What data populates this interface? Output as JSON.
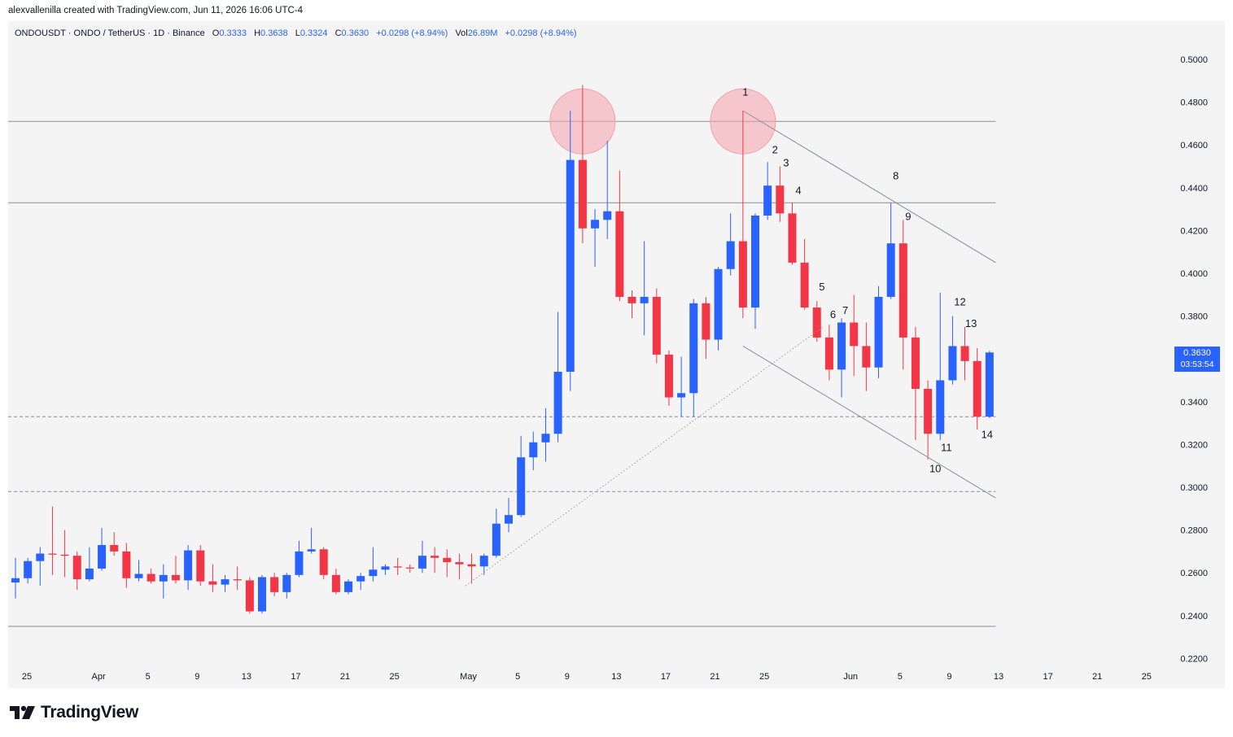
{
  "header": {
    "credit": "alexvallenilla created with TradingView.com, Jun 11, 2026 16:06 UTC-4"
  },
  "legend": {
    "symbol": "ONDOUSDT · ONDO / TetherUS · 1D · Binance",
    "open_label": "O",
    "open": "0.3333",
    "high_label": "H",
    "high": "0.3638",
    "low_label": "L",
    "low": "0.3324",
    "close_label": "C",
    "close": "0.3630",
    "change": "+0.0298 (+8.94%)",
    "vol_label": "Vol",
    "vol": "26.89M",
    "vol_change": "+0.0298 (+8.94%)"
  },
  "price_tag": {
    "price": "0.3630",
    "countdown": "03:53:54"
  },
  "brand": {
    "name": "TradingView"
  },
  "colors": {
    "up": "#2962ff",
    "down": "#f23645",
    "background": "#f4f4f4",
    "circle": "#f5a3ab"
  },
  "chart_data": {
    "type": "candlestick",
    "title": "ONDOUSDT · ONDO / TetherUS · 1D · Binance",
    "ylim": [
      0.21,
      0.51
    ],
    "y_ticks": [
      "0.5000",
      "0.4800",
      "0.4600",
      "0.4400",
      "0.4200",
      "0.4000",
      "0.3800",
      "0.3600",
      "0.3400",
      "0.3200",
      "0.3000",
      "0.2800",
      "0.2600",
      "0.2400",
      "0.2200"
    ],
    "x_ticks": [
      {
        "label": "25",
        "day": 0
      },
      {
        "label": "Apr",
        "day": 7
      },
      {
        "label": "5",
        "day": 11
      },
      {
        "label": "9",
        "day": 15
      },
      {
        "label": "13",
        "day": 19
      },
      {
        "label": "17",
        "day": 23
      },
      {
        "label": "21",
        "day": 27
      },
      {
        "label": "25",
        "day": 31
      },
      {
        "label": "May",
        "day": 37
      },
      {
        "label": "5",
        "day": 41
      },
      {
        "label": "9",
        "day": 45
      },
      {
        "label": "13",
        "day": 49
      },
      {
        "label": "17",
        "day": 53
      },
      {
        "label": "21",
        "day": 57
      },
      {
        "label": "25",
        "day": 61
      },
      {
        "label": "Jun",
        "day": 68
      },
      {
        "label": "5",
        "day": 72
      },
      {
        "label": "9",
        "day": 76
      },
      {
        "label": "13",
        "day": 80
      },
      {
        "label": "17",
        "day": 84
      },
      {
        "label": "21",
        "day": 88
      },
      {
        "label": "25",
        "day": 92
      }
    ],
    "candles": [
      {
        "o": 0.2555,
        "h": 0.267,
        "l": 0.248,
        "c": 0.2575
      },
      {
        "o": 0.2575,
        "h": 0.267,
        "l": 0.255,
        "c": 0.2655
      },
      {
        "o": 0.2655,
        "h": 0.272,
        "l": 0.254,
        "c": 0.269
      },
      {
        "o": 0.269,
        "h": 0.291,
        "l": 0.259,
        "c": 0.2685
      },
      {
        "o": 0.2685,
        "h": 0.28,
        "l": 0.258,
        "c": 0.268
      },
      {
        "o": 0.268,
        "h": 0.27,
        "l": 0.252,
        "c": 0.257
      },
      {
        "o": 0.257,
        "h": 0.272,
        "l": 0.256,
        "c": 0.262
      },
      {
        "o": 0.262,
        "h": 0.281,
        "l": 0.261,
        "c": 0.273
      },
      {
        "o": 0.273,
        "h": 0.279,
        "l": 0.268,
        "c": 0.27
      },
      {
        "o": 0.27,
        "h": 0.274,
        "l": 0.253,
        "c": 0.2575
      },
      {
        "o": 0.2575,
        "h": 0.266,
        "l": 0.256,
        "c": 0.2595
      },
      {
        "o": 0.2595,
        "h": 0.262,
        "l": 0.255,
        "c": 0.256
      },
      {
        "o": 0.256,
        "h": 0.264,
        "l": 0.248,
        "c": 0.259
      },
      {
        "o": 0.259,
        "h": 0.268,
        "l": 0.255,
        "c": 0.2565
      },
      {
        "o": 0.2565,
        "h": 0.273,
        "l": 0.252,
        "c": 0.2705
      },
      {
        "o": 0.2705,
        "h": 0.273,
        "l": 0.254,
        "c": 0.256
      },
      {
        "o": 0.256,
        "h": 0.264,
        "l": 0.251,
        "c": 0.2545
      },
      {
        "o": 0.2545,
        "h": 0.259,
        "l": 0.251,
        "c": 0.257
      },
      {
        "o": 0.257,
        "h": 0.263,
        "l": 0.252,
        "c": 0.2565
      },
      {
        "o": 0.2565,
        "h": 0.258,
        "l": 0.241,
        "c": 0.242
      },
      {
        "o": 0.242,
        "h": 0.259,
        "l": 0.241,
        "c": 0.258
      },
      {
        "o": 0.258,
        "h": 0.26,
        "l": 0.249,
        "c": 0.251
      },
      {
        "o": 0.251,
        "h": 0.26,
        "l": 0.248,
        "c": 0.259
      },
      {
        "o": 0.259,
        "h": 0.275,
        "l": 0.258,
        "c": 0.27
      },
      {
        "o": 0.27,
        "h": 0.281,
        "l": 0.269,
        "c": 0.271
      },
      {
        "o": 0.271,
        "h": 0.272,
        "l": 0.257,
        "c": 0.259
      },
      {
        "o": 0.259,
        "h": 0.262,
        "l": 0.25,
        "c": 0.251
      },
      {
        "o": 0.251,
        "h": 0.257,
        "l": 0.25,
        "c": 0.256
      },
      {
        "o": 0.256,
        "h": 0.26,
        "l": 0.252,
        "c": 0.2585
      },
      {
        "o": 0.2585,
        "h": 0.272,
        "l": 0.256,
        "c": 0.2615
      },
      {
        "o": 0.2615,
        "h": 0.264,
        "l": 0.259,
        "c": 0.263
      },
      {
        "o": 0.263,
        "h": 0.267,
        "l": 0.259,
        "c": 0.2625
      },
      {
        "o": 0.2625,
        "h": 0.264,
        "l": 0.26,
        "c": 0.262
      },
      {
        "o": 0.262,
        "h": 0.275,
        "l": 0.26,
        "c": 0.268
      },
      {
        "o": 0.268,
        "h": 0.272,
        "l": 0.26,
        "c": 0.267
      },
      {
        "o": 0.267,
        "h": 0.271,
        "l": 0.258,
        "c": 0.265
      },
      {
        "o": 0.265,
        "h": 0.269,
        "l": 0.257,
        "c": 0.264
      },
      {
        "o": 0.264,
        "h": 0.269,
        "l": 0.255,
        "c": 0.263
      },
      {
        "o": 0.263,
        "h": 0.269,
        "l": 0.259,
        "c": 0.268
      },
      {
        "o": 0.268,
        "h": 0.29,
        "l": 0.267,
        "c": 0.283
      },
      {
        "o": 0.283,
        "h": 0.295,
        "l": 0.279,
        "c": 0.287
      },
      {
        "o": 0.287,
        "h": 0.324,
        "l": 0.286,
        "c": 0.314
      },
      {
        "o": 0.314,
        "h": 0.326,
        "l": 0.308,
        "c": 0.321
      },
      {
        "o": 0.321,
        "h": 0.337,
        "l": 0.312,
        "c": 0.325
      },
      {
        "o": 0.325,
        "h": 0.382,
        "l": 0.321,
        "c": 0.354
      },
      {
        "o": 0.354,
        "h": 0.476,
        "l": 0.345,
        "c": 0.453
      },
      {
        "o": 0.453,
        "h": 0.488,
        "l": 0.414,
        "c": 0.421
      },
      {
        "o": 0.421,
        "h": 0.43,
        "l": 0.403,
        "c": 0.425
      },
      {
        "o": 0.425,
        "h": 0.462,
        "l": 0.416,
        "c": 0.429
      },
      {
        "o": 0.429,
        "h": 0.448,
        "l": 0.387,
        "c": 0.389
      },
      {
        "o": 0.389,
        "h": 0.392,
        "l": 0.379,
        "c": 0.386
      },
      {
        "o": 0.386,
        "h": 0.415,
        "l": 0.371,
        "c": 0.389
      },
      {
        "o": 0.389,
        "h": 0.393,
        "l": 0.358,
        "c": 0.362
      },
      {
        "o": 0.362,
        "h": 0.364,
        "l": 0.338,
        "c": 0.342
      },
      {
        "o": 0.342,
        "h": 0.361,
        "l": 0.333,
        "c": 0.344
      },
      {
        "o": 0.344,
        "h": 0.388,
        "l": 0.333,
        "c": 0.386
      },
      {
        "o": 0.386,
        "h": 0.389,
        "l": 0.36,
        "c": 0.369
      },
      {
        "o": 0.369,
        "h": 0.403,
        "l": 0.364,
        "c": 0.402
      },
      {
        "o": 0.402,
        "h": 0.428,
        "l": 0.399,
        "c": 0.415
      },
      {
        "o": 0.415,
        "h": 0.476,
        "l": 0.379,
        "c": 0.384
      },
      {
        "o": 0.384,
        "h": 0.428,
        "l": 0.374,
        "c": 0.427
      },
      {
        "o": 0.427,
        "h": 0.452,
        "l": 0.425,
        "c": 0.441
      },
      {
        "o": 0.441,
        "h": 0.45,
        "l": 0.424,
        "c": 0.428
      },
      {
        "o": 0.428,
        "h": 0.433,
        "l": 0.404,
        "c": 0.405
      },
      {
        "o": 0.405,
        "h": 0.416,
        "l": 0.383,
        "c": 0.384
      },
      {
        "o": 0.384,
        "h": 0.387,
        "l": 0.368,
        "c": 0.37
      },
      {
        "o": 0.37,
        "h": 0.376,
        "l": 0.35,
        "c": 0.355
      },
      {
        "o": 0.355,
        "h": 0.379,
        "l": 0.342,
        "c": 0.377
      },
      {
        "o": 0.377,
        "h": 0.39,
        "l": 0.352,
        "c": 0.366
      },
      {
        "o": 0.366,
        "h": 0.377,
        "l": 0.345,
        "c": 0.356
      },
      {
        "o": 0.356,
        "h": 0.394,
        "l": 0.351,
        "c": 0.389
      },
      {
        "o": 0.389,
        "h": 0.433,
        "l": 0.388,
        "c": 0.414
      },
      {
        "o": 0.414,
        "h": 0.425,
        "l": 0.355,
        "c": 0.37
      },
      {
        "o": 0.37,
        "h": 0.375,
        "l": 0.322,
        "c": 0.346
      },
      {
        "o": 0.346,
        "h": 0.35,
        "l": 0.313,
        "c": 0.325
      },
      {
        "o": 0.325,
        "h": 0.391,
        "l": 0.322,
        "c": 0.35
      },
      {
        "o": 0.35,
        "h": 0.38,
        "l": 0.348,
        "c": 0.366
      },
      {
        "o": 0.366,
        "h": 0.375,
        "l": 0.35,
        "c": 0.359
      },
      {
        "o": 0.359,
        "h": 0.365,
        "l": 0.327,
        "c": 0.333
      },
      {
        "o": 0.333,
        "h": 0.3638,
        "l": 0.3324,
        "c": 0.363
      }
    ],
    "horizontal_lines": [
      {
        "price": 0.471,
        "style": "solid",
        "from_day": 0,
        "to_day": 79.5
      },
      {
        "price": 0.433,
        "style": "solid",
        "from_day": 71,
        "to_day": 79.5
      },
      {
        "price": 0.333,
        "style": "dashed",
        "from_day": 54,
        "to_day": 79.5
      },
      {
        "price": 0.298,
        "style": "dashed",
        "from_day": 0,
        "to_day": 79.5
      },
      {
        "price": 0.235,
        "style": "solid",
        "from_day": 0,
        "to_day": 79.5
      }
    ],
    "trend_lines": [
      {
        "from": {
          "day": 59,
          "price": 0.476
        },
        "to": {
          "day": 79.5,
          "price": 0.405
        },
        "style": "solid"
      },
      {
        "from": {
          "day": 59,
          "price": 0.366
        },
        "to": {
          "day": 79.5,
          "price": 0.295
        },
        "style": "solid"
      },
      {
        "from": {
          "day": 36.5,
          "price": 0.254
        },
        "to": {
          "day": 65.5,
          "price": 0.375
        },
        "style": "dotted"
      }
    ],
    "circles": [
      {
        "day": 46,
        "price": 0.471
      },
      {
        "day": 59,
        "price": 0.471
      }
    ],
    "wave_labels": [
      {
        "text": "1",
        "day": 59.2,
        "price": 0.483
      },
      {
        "text": "2",
        "day": 61.6,
        "price": 0.456
      },
      {
        "text": "3",
        "day": 62.5,
        "price": 0.45
      },
      {
        "text": "4",
        "day": 63.5,
        "price": 0.437
      },
      {
        "text": "5",
        "day": 65.4,
        "price": 0.392
      },
      {
        "text": "6",
        "day": 66.3,
        "price": 0.379
      },
      {
        "text": "7",
        "day": 67.3,
        "price": 0.381
      },
      {
        "text": "8",
        "day": 71.4,
        "price": 0.444
      },
      {
        "text": "9",
        "day": 72.4,
        "price": 0.425
      },
      {
        "text": "10",
        "day": 74.6,
        "price": 0.307
      },
      {
        "text": "11",
        "day": 75.5,
        "price": 0.317
      },
      {
        "text": "12",
        "day": 76.6,
        "price": 0.385
      },
      {
        "text": "13",
        "day": 77.5,
        "price": 0.375
      },
      {
        "text": "14",
        "day": 78.8,
        "price": 0.323
      }
    ]
  }
}
